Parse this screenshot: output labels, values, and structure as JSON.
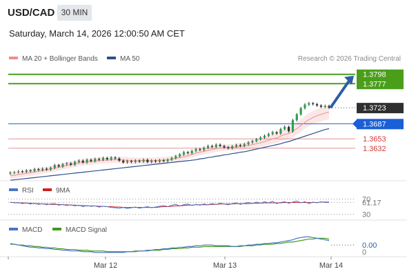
{
  "header": {
    "symbol": "USD/CAD",
    "timeframe": "30 MIN",
    "datetime": "Saturday, March 14, 2026 12:00:50 AM CET"
  },
  "legend": {
    "ma20_bb": "MA 20 + Bollinger Bands",
    "ma50": "MA 50",
    "credit": "Research © 2026 Trading Central"
  },
  "colors": {
    "resistance": "#4a9e1a",
    "current": "#2f2f2f",
    "pivot": "#1a5fd6",
    "support": "#d23a3a",
    "ma50": "#2c4f8c",
    "ma20": "#e8a0a0",
    "arrow": "#2c5ea8"
  },
  "chart_data": [
    {
      "type": "candlestick",
      "title": "",
      "x_ticks": [
        "Mar 12",
        "Mar 13",
        "Mar 14"
      ],
      "levels": [
        {
          "label": "1.3798",
          "value": 1.3798,
          "kind": "resistance"
        },
        {
          "label": "1.3777",
          "value": 1.3777,
          "kind": "resistance"
        },
        {
          "label": "1.3723",
          "value": 1.3723,
          "kind": "current"
        },
        {
          "label": "1.3687",
          "value": 1.3687,
          "kind": "pivot"
        },
        {
          "label": "1.3653",
          "value": 1.3653,
          "kind": "support"
        },
        {
          "label": "1.3632",
          "value": 1.3632,
          "kind": "support"
        }
      ],
      "close": [
        1.3577,
        1.3578,
        1.358,
        1.3579,
        1.3582,
        1.3581,
        1.3585,
        1.3583,
        1.3586,
        1.3584,
        1.3588,
        1.3594,
        1.3591,
        1.3596,
        1.3598,
        1.3595,
        1.3601,
        1.3604,
        1.36,
        1.3606,
        1.3603,
        1.3608,
        1.3606,
        1.361,
        1.3607,
        1.3611,
        1.3609,
        1.3604,
        1.36,
        1.3603,
        1.3601,
        1.3604,
        1.3602,
        1.3606,
        1.3601,
        1.3604,
        1.3602,
        1.3605,
        1.3603,
        1.3606,
        1.361,
        1.3614,
        1.3618,
        1.3623,
        1.3621,
        1.3626,
        1.363,
        1.3628,
        1.3633,
        1.3637,
        1.3635,
        1.364,
        1.3637,
        1.3634,
        1.3632,
        1.3636,
        1.3639,
        1.3637,
        1.3641,
        1.3645,
        1.3648,
        1.3652,
        1.3656,
        1.366,
        1.3664,
        1.3668,
        1.3665,
        1.3675,
        1.368,
        1.367,
        1.3695,
        1.3708,
        1.3722,
        1.373,
        1.3733,
        1.3731,
        1.3728,
        1.3725,
        1.3727,
        1.3723
      ],
      "ma20": [
        1.357,
        1.3571,
        1.3573,
        1.3574,
        1.3576,
        1.3577,
        1.3579,
        1.358,
        1.3582,
        1.3583,
        1.3585,
        1.3587,
        1.3589,
        1.3591,
        1.3593,
        1.3595,
        1.3597,
        1.3599,
        1.36,
        1.3601,
        1.3602,
        1.3603,
        1.3604,
        1.3605,
        1.3605,
        1.3606,
        1.3606,
        1.3606,
        1.3605,
        1.3605,
        1.3604,
        1.3604,
        1.3604,
        1.3604,
        1.3604,
        1.3604,
        1.3604,
        1.3605,
        1.3605,
        1.3606,
        1.3607,
        1.3609,
        1.3611,
        1.3613,
        1.3615,
        1.3618,
        1.3621,
        1.3623,
        1.3625,
        1.3627,
        1.3629,
        1.3631,
        1.3632,
        1.3633,
        1.3634,
        1.3634,
        1.3635,
        1.3636,
        1.3637,
        1.3638,
        1.364,
        1.3642,
        1.3644,
        1.3647,
        1.365,
        1.3653,
        1.3655,
        1.3659,
        1.3663,
        1.3665,
        1.367,
        1.3676,
        1.3683,
        1.369,
        1.3696,
        1.3701,
        1.3705,
        1.3708,
        1.3711,
        1.3713
      ],
      "ma50": [
        1.356,
        1.3561,
        1.3562,
        1.3563,
        1.3564,
        1.3565,
        1.3566,
        1.3567,
        1.3568,
        1.3569,
        1.357,
        1.3571,
        1.3572,
        1.3573,
        1.3574,
        1.3575,
        1.3576,
        1.3577,
        1.3578,
        1.3579,
        1.358,
        1.3581,
        1.3582,
        1.3583,
        1.3584,
        1.3585,
        1.3586,
        1.3587,
        1.3588,
        1.3589,
        1.359,
        1.3591,
        1.3592,
        1.3593,
        1.3594,
        1.3595,
        1.3596,
        1.3597,
        1.3598,
        1.3599,
        1.36,
        1.3601,
        1.3602,
        1.3603,
        1.3604,
        1.3605,
        1.3606,
        1.3608,
        1.3609,
        1.3611,
        1.3612,
        1.3614,
        1.3615,
        1.3617,
        1.3618,
        1.362,
        1.3621,
        1.3623,
        1.3624,
        1.3626,
        1.3628,
        1.363,
        1.3632,
        1.3634,
        1.3636,
        1.3638,
        1.364,
        1.3642,
        1.3645,
        1.3647,
        1.365,
        1.3653,
        1.3656,
        1.3659,
        1.3662,
        1.3665,
        1.3668,
        1.3671,
        1.3674,
        1.3676
      ],
      "bb_width": 0.0012
    },
    {
      "type": "line",
      "title": "RSI",
      "series": [
        {
          "name": "RSI"
        },
        {
          "name": "9MA"
        }
      ],
      "levels": [
        {
          "label": "70",
          "value": 70
        },
        {
          "label": "61.17",
          "value": 61.17
        },
        {
          "label": "30",
          "value": 30
        }
      ],
      "rsi": [
        62,
        60,
        61,
        58,
        60,
        57,
        59,
        56,
        58,
        55,
        57,
        58,
        54,
        56,
        53,
        55,
        52,
        54,
        50,
        53,
        51,
        52,
        49,
        51,
        50,
        48,
        47,
        46,
        48,
        45,
        47,
        49,
        46,
        48,
        50,
        47,
        49,
        51,
        53,
        50,
        54,
        56,
        52,
        55,
        57,
        53,
        56,
        54,
        57,
        55,
        58,
        56,
        59,
        57,
        55,
        58,
        60,
        56,
        59,
        61,
        58,
        62,
        59,
        63,
        60,
        64,
        58,
        61,
        63,
        59,
        62,
        65,
        60,
        63,
        58,
        62,
        60,
        63,
        61,
        61.17
      ],
      "ma9": [
        61,
        61,
        60,
        60,
        59,
        59,
        58,
        58,
        57,
        57,
        56,
        56,
        56,
        55,
        55,
        54,
        54,
        53,
        53,
        52,
        52,
        52,
        51,
        51,
        50,
        50,
        49,
        49,
        48,
        48,
        48,
        48,
        48,
        48,
        48,
        48,
        48,
        49,
        50,
        50,
        51,
        52,
        52,
        53,
        54,
        54,
        55,
        55,
        55,
        55,
        56,
        56,
        57,
        57,
        57,
        57,
        58,
        58,
        58,
        58,
        59,
        59,
        59,
        60,
        60,
        60,
        60,
        60,
        61,
        61,
        61,
        61,
        61,
        61,
        61,
        61,
        61,
        62,
        62,
        62
      ]
    },
    {
      "type": "line",
      "title": "MACD",
      "series": [
        {
          "name": "MACD"
        },
        {
          "name": "MACD Signal"
        }
      ],
      "levels": [
        {
          "label": "0.00",
          "value": 0.0
        },
        {
          "label": "0",
          "value": -0.0009
        }
      ],
      "macd": [
        0.0002,
        0.0001,
        0.0,
        -0.0001,
        -0.0002,
        -0.0003,
        -0.0003,
        -0.0004,
        -0.0004,
        -0.0005,
        -0.0005,
        -0.0006,
        -0.0006,
        -0.0007,
        -0.0007,
        -0.0008,
        -0.0008,
        -0.0008,
        -0.0009,
        -0.0009,
        -0.0009,
        -0.001,
        -0.001,
        -0.001,
        -0.001,
        -0.001,
        -0.001,
        -0.001,
        -0.001,
        -0.0009,
        -0.0009,
        -0.0009,
        -0.0008,
        -0.0008,
        -0.0007,
        -0.0007,
        -0.0006,
        -0.0006,
        -0.0005,
        -0.0005,
        -0.0004,
        -0.0004,
        -0.0003,
        -0.0003,
        -0.0002,
        -0.0002,
        -0.0001,
        -0.0001,
        0.0,
        0.0,
        0.0,
        -0.0001,
        -0.0001,
        -0.0001,
        -0.0001,
        -0.0002,
        -0.0002,
        -0.0001,
        -0.0001,
        0.0,
        0.0,
        0.0001,
        0.0001,
        0.0002,
        0.0002,
        0.0003,
        0.0003,
        0.0004,
        0.0005,
        0.0006,
        0.0007,
        0.0009,
        0.001,
        0.0011,
        0.0011,
        0.001,
        0.0009,
        0.0008,
        0.0007,
        0.0006
      ],
      "signal": [
        0.0001,
        0.0001,
        0.0,
        0.0,
        -0.0001,
        -0.0001,
        -0.0002,
        -0.0002,
        -0.0003,
        -0.0003,
        -0.0004,
        -0.0004,
        -0.0005,
        -0.0005,
        -0.0006,
        -0.0006,
        -0.0006,
        -0.0007,
        -0.0007,
        -0.0007,
        -0.0008,
        -0.0008,
        -0.0008,
        -0.0008,
        -0.0009,
        -0.0009,
        -0.0009,
        -0.0009,
        -0.0009,
        -0.0009,
        -0.0009,
        -0.0008,
        -0.0008,
        -0.0008,
        -0.0008,
        -0.0007,
        -0.0007,
        -0.0007,
        -0.0006,
        -0.0006,
        -0.0005,
        -0.0005,
        -0.0005,
        -0.0004,
        -0.0004,
        -0.0003,
        -0.0003,
        -0.0003,
        -0.0002,
        -0.0002,
        -0.0002,
        -0.0002,
        -0.0002,
        -0.0002,
        -0.0002,
        -0.0002,
        -0.0002,
        -0.0002,
        -0.0001,
        -0.0001,
        -0.0001,
        0.0,
        0.0,
        0.0001,
        0.0001,
        0.0001,
        0.0002,
        0.0002,
        0.0003,
        0.0004,
        0.0004,
        0.0005,
        0.0006,
        0.0007,
        0.0008,
        0.0008,
        0.0009,
        0.0009,
        0.0009,
        0.0008
      ]
    }
  ]
}
